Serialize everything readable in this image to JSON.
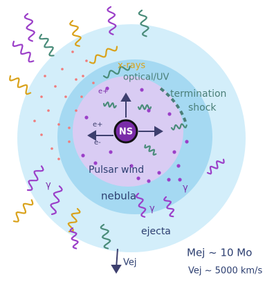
{
  "labels": {
    "xrays": "x-rays",
    "optical": "optical/UV",
    "termination": "termination",
    "shock": "shock",
    "ns": "NS",
    "e_plus_outer": "e+",
    "e_plus": "e+",
    "e_minus": "e-",
    "pulsar_wind": "Pulsar wind",
    "nebula": "nebula",
    "ejecta": "ejecta",
    "vej_arrow": "Vej",
    "mass": "Mej ~ 10 Mo",
    "velocity": "Vej ~ 5000 km/s"
  },
  "gamma_labels": [
    "γ",
    "γ",
    "γ"
  ]
}
